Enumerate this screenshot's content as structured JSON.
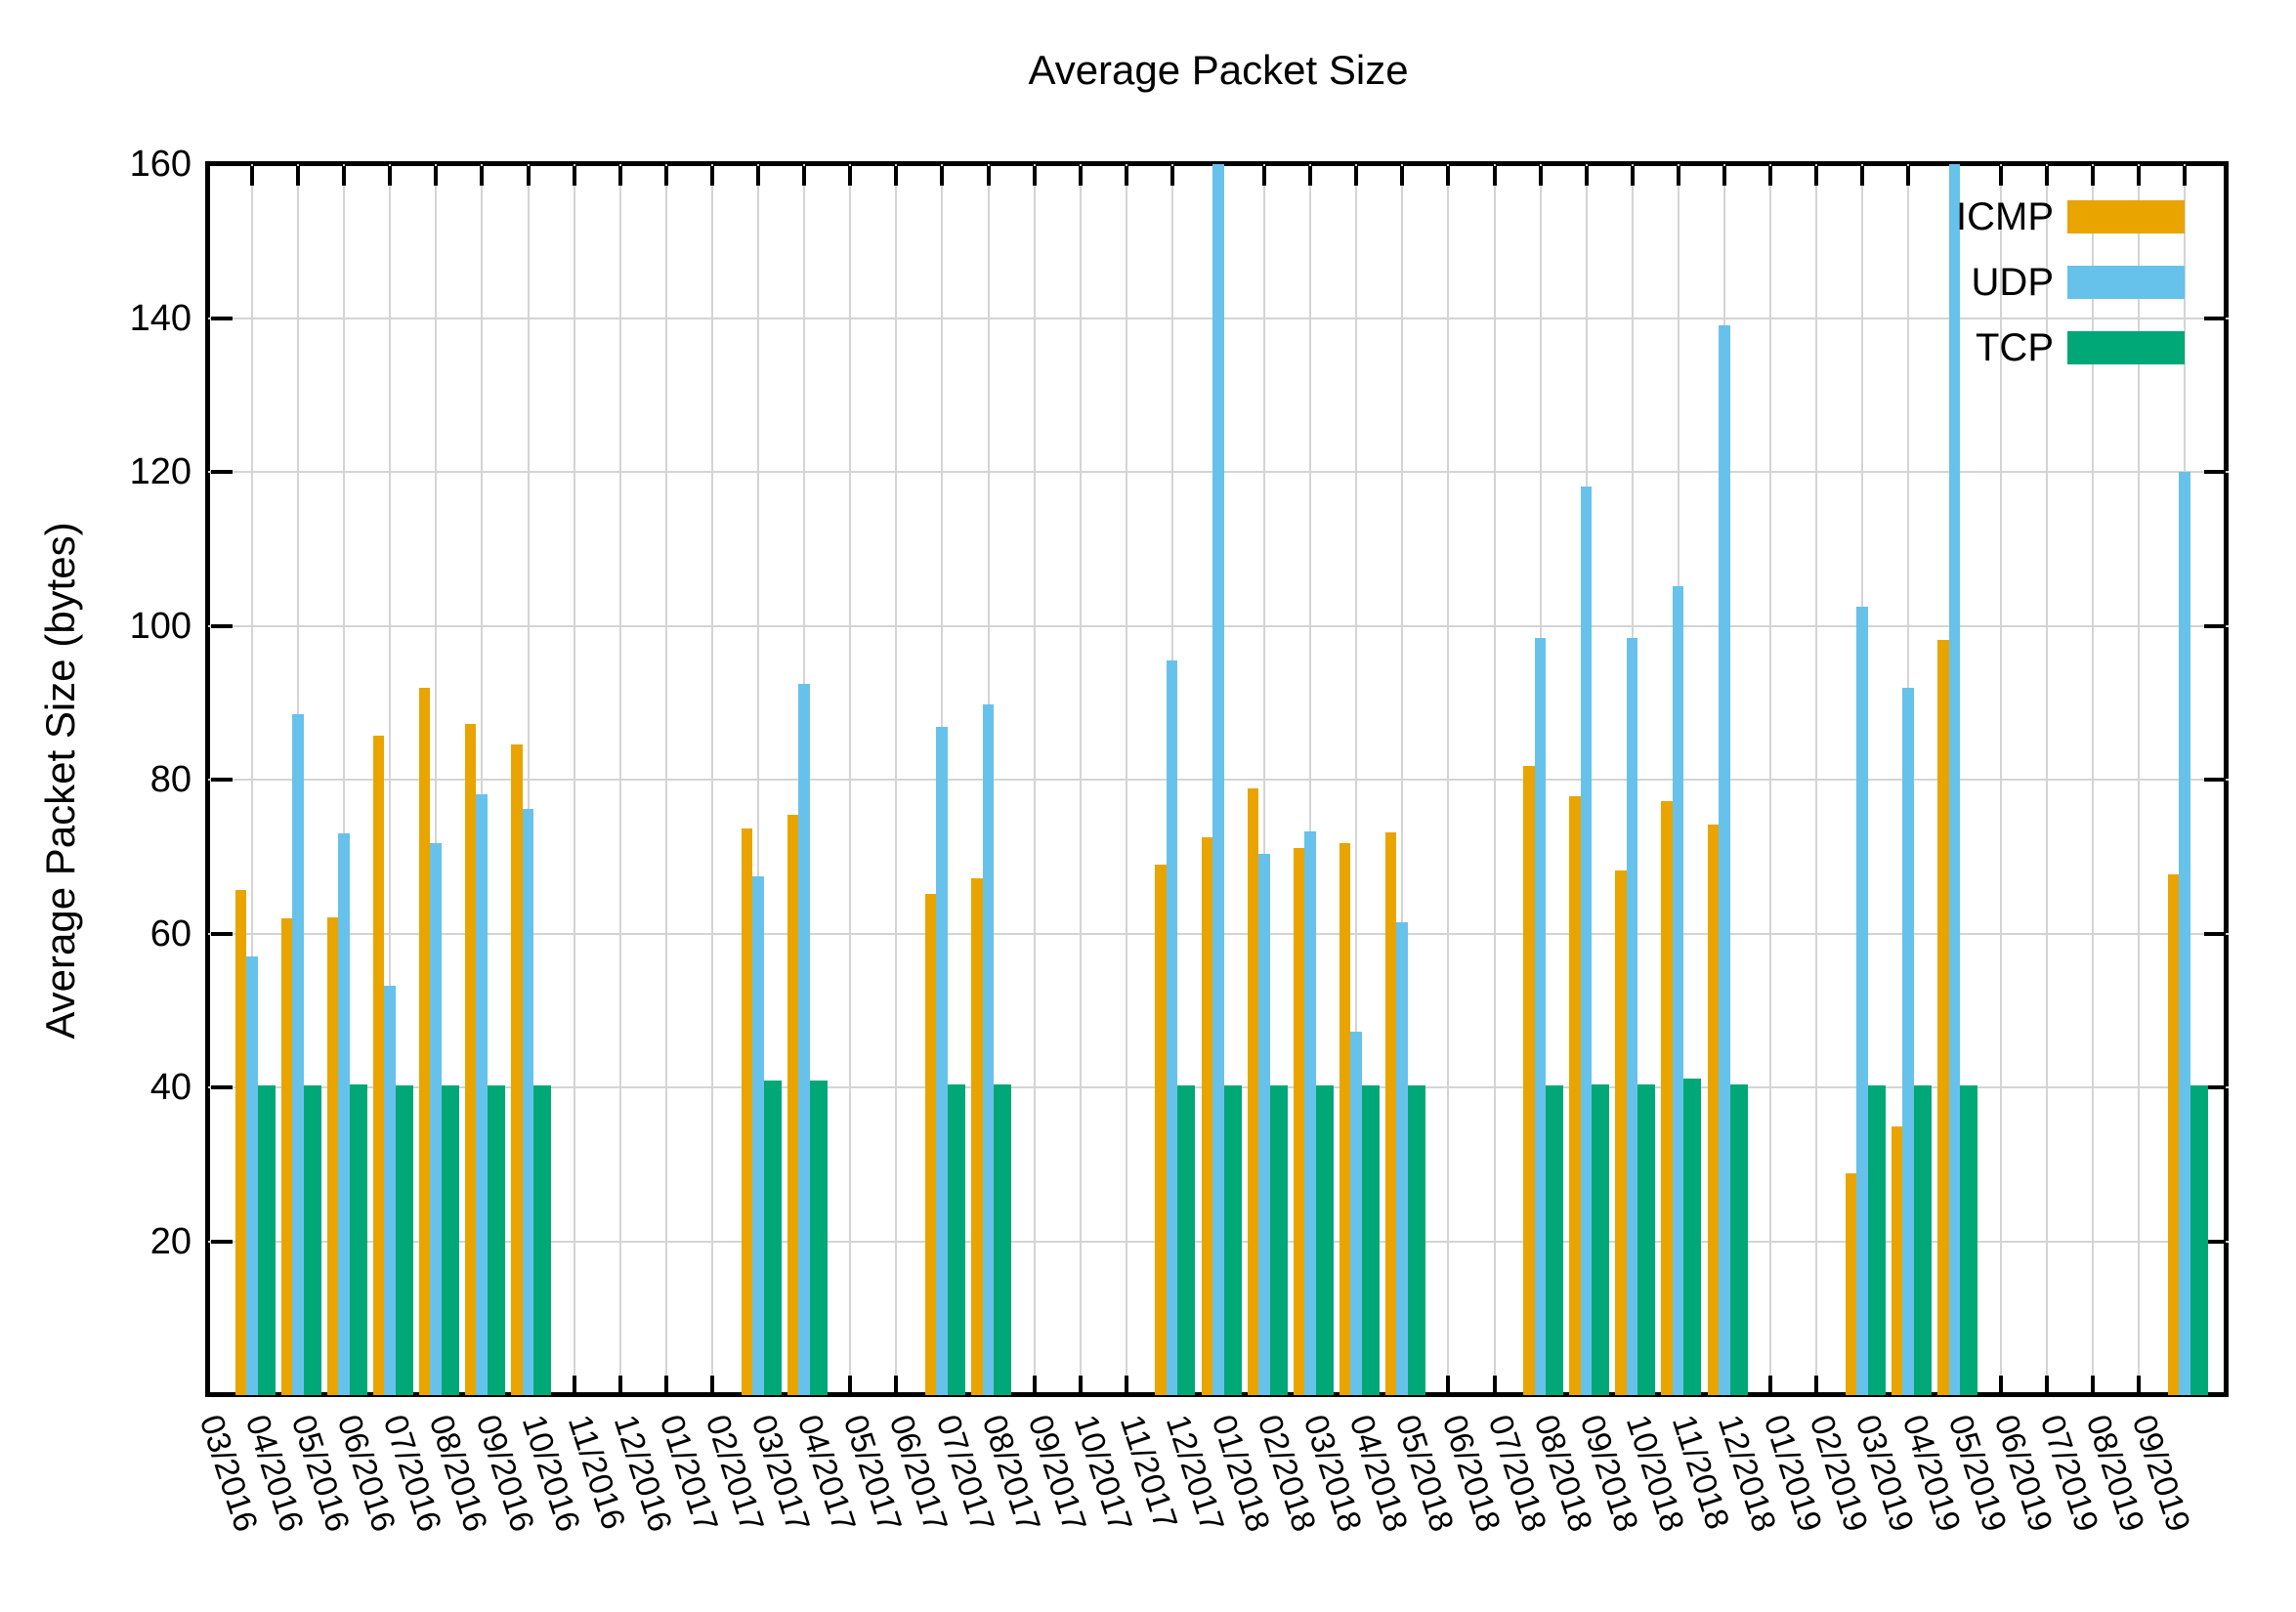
{
  "title": "Average Packet Size",
  "y_axis": {
    "label": "Average Packet Size (bytes)",
    "min": 0,
    "max": 160,
    "tick_step": 20,
    "tick_labels": [
      "20",
      "40",
      "60",
      "80",
      "100",
      "120",
      "140",
      "160"
    ]
  },
  "x_axis": {
    "tick_label_rotation_deg": 72,
    "note": "monthly ticks, labels formatted MM/YYYY"
  },
  "legend": {
    "position": "top-right-inside",
    "entries": [
      {
        "label": "ICMP",
        "color": "#E9A400"
      },
      {
        "label": "UDP",
        "color": "#67C2EB"
      },
      {
        "label": "TCP",
        "color": "#00A877"
      }
    ]
  },
  "chart_data": {
    "type": "bar",
    "title": "Average Packet Size",
    "xlabel": "",
    "ylabel": "Average Packet Size (bytes)",
    "ylim": [
      0,
      160
    ],
    "grid": true,
    "legend_position": "top-right-inside",
    "categories": [
      "03/2016",
      "04/2016",
      "05/2016",
      "06/2016",
      "07/2016",
      "08/2016",
      "09/2016",
      "10/2016",
      "11/2016",
      "12/2016",
      "01/2017",
      "02/2017",
      "03/2017",
      "04/2017",
      "05/2017",
      "06/2017",
      "07/2017",
      "08/2017",
      "09/2017",
      "10/2017",
      "11/2017",
      "12/2017",
      "01/2018",
      "02/2018",
      "03/2018",
      "04/2018",
      "05/2018",
      "06/2018",
      "07/2018",
      "08/2018",
      "09/2018",
      "10/2018",
      "11/2018",
      "12/2018",
      "01/2019",
      "02/2019",
      "03/2019",
      "04/2019",
      "05/2019",
      "06/2019",
      "07/2019",
      "08/2019",
      "09/2019"
    ],
    "series": [
      {
        "name": "ICMP",
        "color": "#E9A400",
        "values": [
          65.7,
          62.0,
          62.1,
          85.7,
          91.9,
          87.2,
          84.6,
          null,
          null,
          null,
          null,
          73.6,
          75.4,
          null,
          null,
          65.2,
          67.2,
          null,
          null,
          null,
          69.0,
          72.5,
          78.8,
          71.1,
          71.7,
          73.2,
          null,
          null,
          81.8,
          77.9,
          68.2,
          77.2,
          74.1,
          null,
          null,
          28.8,
          34.9,
          98.1,
          null,
          null,
          null,
          null,
          67.7
        ]
      },
      {
        "name": "UDP",
        "color": "#67C2EB",
        "values": [
          57.0,
          88.5,
          73.0,
          53.2,
          71.8,
          78.1,
          76.2,
          null,
          null,
          null,
          null,
          67.4,
          92.5,
          null,
          null,
          86.9,
          89.8,
          null,
          null,
          null,
          95.5,
          160,
          70.4,
          73.3,
          47.3,
          61.5,
          null,
          null,
          98.4,
          118.1,
          98.4,
          105.2,
          139.0,
          null,
          null,
          102.5,
          91.9,
          160,
          null,
          null,
          null,
          null,
          120.0
        ]
      },
      {
        "name": "TCP",
        "color": "#00A877",
        "values": [
          40.3,
          40.3,
          40.4,
          40.3,
          40.3,
          40.3,
          40.3,
          null,
          null,
          null,
          null,
          40.9,
          40.9,
          null,
          null,
          40.4,
          40.4,
          null,
          null,
          null,
          40.3,
          40.2,
          40.2,
          40.2,
          40.2,
          40.2,
          null,
          null,
          40.3,
          40.4,
          40.4,
          41.1,
          40.4,
          null,
          null,
          40.3,
          40.3,
          40.3,
          null,
          null,
          null,
          null,
          40.3
        ]
      }
    ],
    "udp_bars_clipped_at_axis_max": [
      "12/2017",
      "04/2019"
    ]
  }
}
